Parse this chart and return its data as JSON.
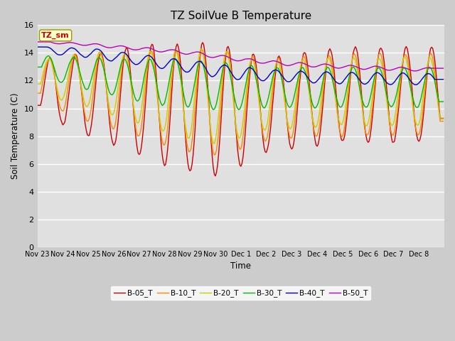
{
  "title": "TZ SoilVue B Temperature",
  "ylabel": "Soil Temperature (C)",
  "xlabel": "Time",
  "ylim": [
    0,
    16
  ],
  "yticks": [
    0,
    2,
    4,
    6,
    8,
    10,
    12,
    14,
    16
  ],
  "legend_label": "TZ_sm",
  "series_labels": [
    "B-05_T",
    "B-10_T",
    "B-20_T",
    "B-30_T",
    "B-40_T",
    "B-50_T"
  ],
  "series_colors": [
    "#cc0000",
    "#ff8800",
    "#cccc00",
    "#00bb00",
    "#0000cc",
    "#bb00bb"
  ],
  "xtick_labels": [
    "Nov 23",
    "Nov 24",
    "Nov 25",
    "Nov 26",
    "Nov 27",
    "Nov 28",
    "Nov 29",
    "Nov 30",
    "Dec 1",
    "Dec 2",
    "Dec 3",
    "Dec 4",
    "Dec 5",
    "Dec 6",
    "Dec 7",
    "Dec 8"
  ],
  "background_color": "#cccccc",
  "plot_bg_color": "#e0e0e0",
  "title_fontsize": 11,
  "axis_fontsize": 8,
  "legend_fontsize": 8,
  "figsize": [
    6.4,
    4.8
  ],
  "dpi": 100
}
